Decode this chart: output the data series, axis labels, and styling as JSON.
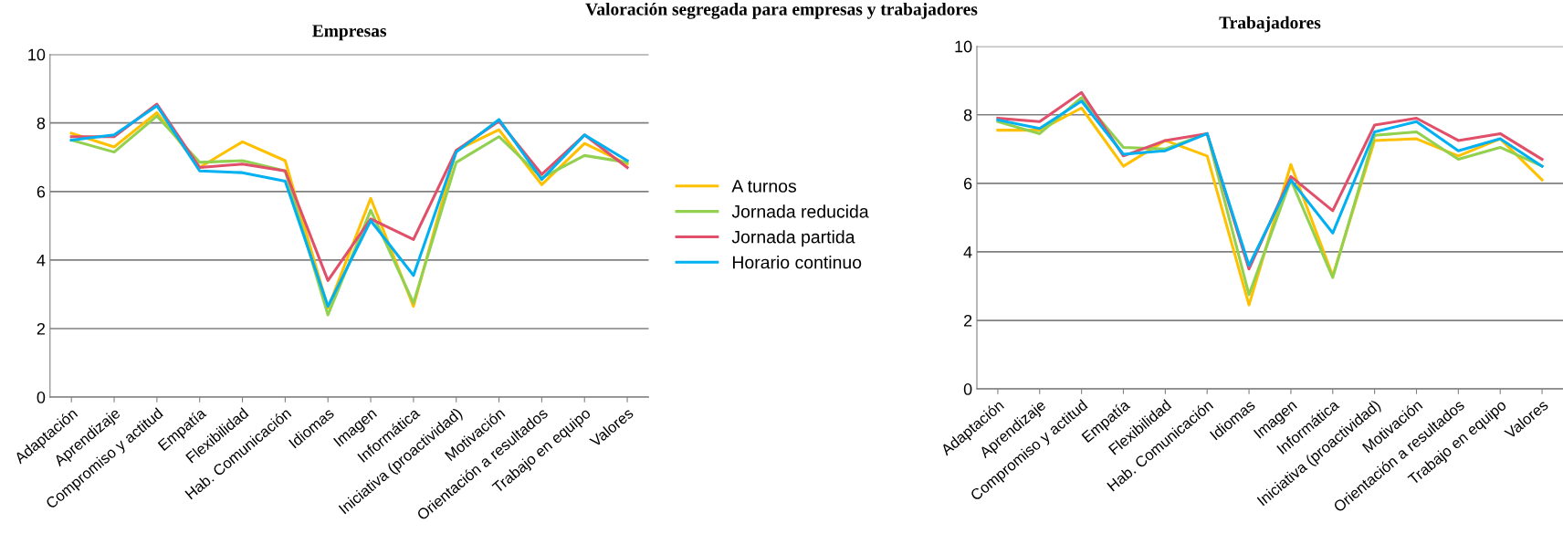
{
  "chart_data": [
    {
      "type": "line",
      "title": "Empresas",
      "categories": [
        "Adaptación",
        "Aprendizaje",
        "Compromiso y actitud",
        "Empatía",
        "Flexibilidad",
        "Hab. Comunicación",
        "Idiomas",
        "Imagen",
        "Informática",
        "Iniciativa (proactividad)",
        "Motivación",
        "Orientación a resultados",
        "Trabajo en equipo",
        "Valores"
      ],
      "series": [
        {
          "name": "A turnos",
          "color": "#ffc000",
          "values": [
            7.7,
            7.3,
            8.3,
            6.7,
            7.45,
            6.9,
            2.6,
            5.8,
            2.65,
            7.2,
            7.8,
            6.2,
            7.4,
            6.8
          ]
        },
        {
          "name": "Jornada reducida",
          "color": "#92d050",
          "values": [
            7.5,
            7.15,
            8.2,
            6.85,
            6.9,
            6.6,
            2.4,
            5.45,
            2.75,
            6.85,
            7.6,
            6.4,
            7.05,
            6.85
          ]
        },
        {
          "name": "Jornada partida",
          "color": "#e0506a",
          "values": [
            7.6,
            7.6,
            8.55,
            6.7,
            6.8,
            6.6,
            3.4,
            5.2,
            4.6,
            7.2,
            8.05,
            6.5,
            7.65,
            6.7
          ]
        },
        {
          "name": "Horario continuo",
          "color": "#00b0f0",
          "values": [
            7.5,
            7.65,
            8.5,
            6.6,
            6.55,
            6.3,
            2.65,
            5.15,
            3.55,
            7.15,
            8.1,
            6.35,
            7.65,
            6.9
          ]
        }
      ],
      "ylim": [
        0,
        10
      ],
      "yticks": [
        0,
        2,
        4,
        6,
        8,
        10
      ],
      "grid": "y",
      "legend": "right",
      "marker": "none"
    },
    {
      "type": "line",
      "title": "Trabajadores",
      "categories": [
        "Adaptación",
        "Aprendizaje",
        "Compromiso y actitud",
        "Empatía",
        "Flexibilidad",
        "Hab. Comunicación",
        "Idiomas",
        "Imagen",
        "Informática",
        "Iniciativa (proactividad)",
        "Motivación",
        "Orientación a resultados",
        "Trabajo en equipo",
        "Valores"
      ],
      "series": [
        {
          "color": "#ffc000",
          "values": [
            7.55,
            7.55,
            8.2,
            6.5,
            7.25,
            6.8,
            2.45,
            6.55,
            3.3,
            7.25,
            7.3,
            6.8,
            7.3,
            6.1
          ]
        },
        {
          "color": "#92d050",
          "values": [
            7.8,
            7.45,
            8.5,
            7.05,
            7.0,
            7.45,
            2.75,
            6.1,
            3.25,
            7.4,
            7.5,
            6.7,
            7.05,
            6.5
          ]
        },
        {
          "color": "#e0506a",
          "values": [
            7.9,
            7.8,
            8.65,
            6.8,
            7.25,
            7.45,
            3.5,
            6.2,
            5.2,
            7.7,
            7.9,
            7.25,
            7.45,
            6.7
          ]
        },
        {
          "color": "#00b0f0",
          "values": [
            7.85,
            7.6,
            8.4,
            6.85,
            6.95,
            7.45,
            3.6,
            6.1,
            4.55,
            7.5,
            7.8,
            6.95,
            7.3,
            6.5
          ]
        }
      ],
      "ylim": [
        0,
        10
      ],
      "yticks": [
        0,
        2,
        4,
        6,
        8,
        10
      ],
      "grid": "y",
      "marker": "none",
      "annotations": [
        "Valoración segregada para empresas y trabajadores"
      ]
    }
  ]
}
